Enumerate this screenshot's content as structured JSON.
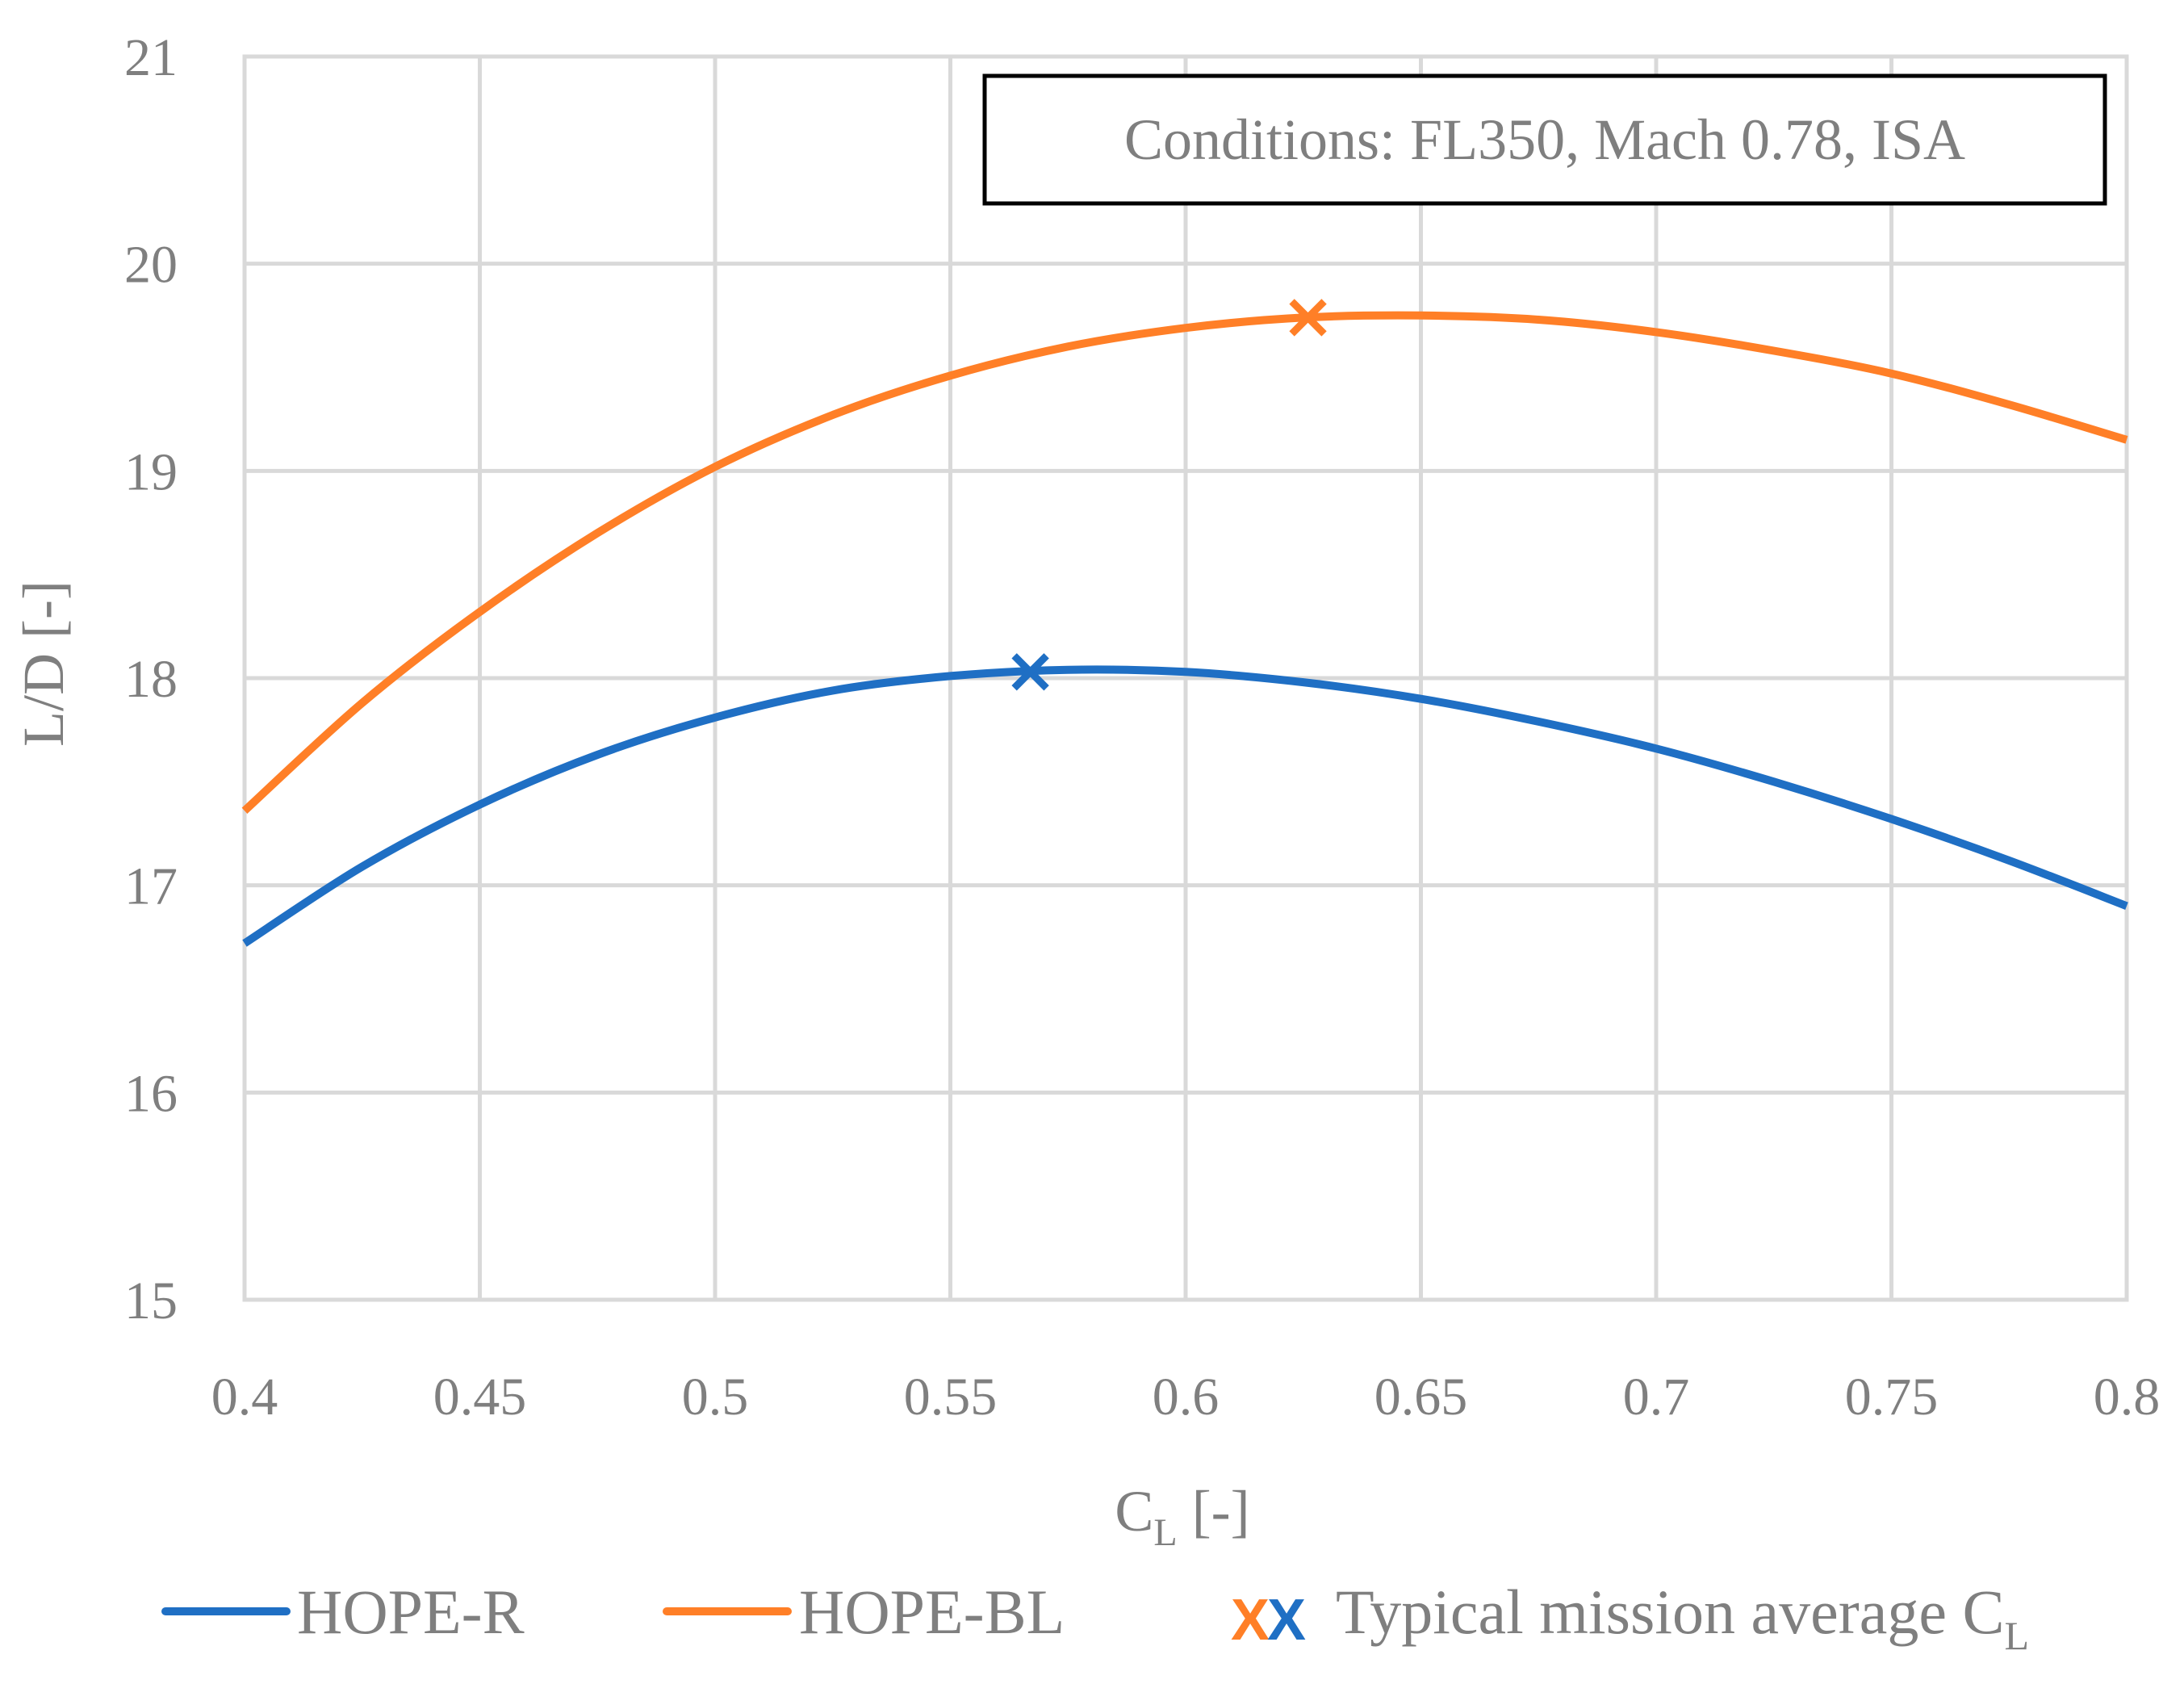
{
  "chart_data": {
    "type": "line",
    "xlabel": "C",
    "xlabel_subscript": "L",
    "xlabel_suffix": " [-]",
    "ylabel": "L/D [-]",
    "xlim": [
      0.4,
      0.8
    ],
    "ylim": [
      15,
      21
    ],
    "xticks": [
      "0.4",
      "0.45",
      "0.5",
      "0.55",
      "0.6",
      "0.65",
      "0.7",
      "0.75",
      "0.8"
    ],
    "yticks": [
      "15",
      "16",
      "17",
      "18",
      "19",
      "20",
      "21"
    ],
    "grid": true,
    "annotation": "Conditions: FL350, Mach 0.78, ISA",
    "series": [
      {
        "name": "HOPE-R",
        "color": "#1f6fc4",
        "x": [
          0.4,
          0.425,
          0.45,
          0.475,
          0.5,
          0.525,
          0.55,
          0.575,
          0.6,
          0.625,
          0.65,
          0.675,
          0.7,
          0.725,
          0.75,
          0.775,
          0.8
        ],
        "y": [
          16.72,
          17.09,
          17.39,
          17.63,
          17.81,
          17.94,
          18.01,
          18.04,
          18.03,
          17.98,
          17.9,
          17.79,
          17.66,
          17.5,
          17.32,
          17.12,
          16.9
        ]
      },
      {
        "name": "HOPE-BL",
        "color": "#ff7f27",
        "x": [
          0.4,
          0.425,
          0.45,
          0.475,
          0.5,
          0.525,
          0.55,
          0.575,
          0.6,
          0.625,
          0.65,
          0.675,
          0.7,
          0.725,
          0.75,
          0.775,
          0.8
        ],
        "y": [
          17.36,
          17.88,
          18.32,
          18.7,
          19.02,
          19.27,
          19.46,
          19.6,
          19.69,
          19.74,
          19.75,
          19.73,
          19.67,
          19.58,
          19.47,
          19.32,
          19.15
        ]
      }
    ],
    "markers": [
      {
        "series": "HOPE-BL",
        "x": 0.626,
        "y": 19.74,
        "symbol": "X",
        "color": "#ff7f27"
      },
      {
        "series": "HOPE-R",
        "x": 0.567,
        "y": 18.03,
        "symbol": "X",
        "color": "#1f6fc4"
      }
    ],
    "legend": {
      "placement": "bottom",
      "items": [
        {
          "label": "HOPE-R",
          "type": "line",
          "color": "#1f6fc4"
        },
        {
          "label": "HOPE-BL",
          "type": "line",
          "color": "#ff7f27"
        },
        {
          "label": "Typical mission average C",
          "subscript": "L",
          "type": "marker",
          "symbols": [
            "X",
            "X"
          ],
          "colors": [
            "#ff7f27",
            "#1f6fc4"
          ]
        }
      ]
    }
  }
}
